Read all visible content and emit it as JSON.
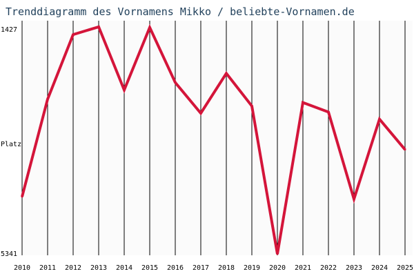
{
  "chart_data": {
    "type": "line",
    "title": "Trenddiagramm des Vornamens Mikko / beliebte-Vornamen.de",
    "xlabel": "",
    "ylabel": "Platz",
    "y_top_label": "1427",
    "y_bottom_label": "5341",
    "ylim": [
      1427,
      5341
    ],
    "y_inverted": true,
    "x": [
      "2010",
      "2011",
      "2012",
      "2013",
      "2014",
      "2015",
      "2016",
      "2017",
      "2018",
      "2019",
      "2020",
      "2021",
      "2022",
      "2023",
      "2024",
      "2025"
    ],
    "series": [
      {
        "name": "",
        "values": [
          4380,
          2745,
          1660,
          1530,
          2590,
          1540,
          2465,
          2980,
          2310,
          2860,
          5341,
          2800,
          2960,
          4420,
          3080,
          3590
        ],
        "color": "#d4153a"
      }
    ],
    "grid": {
      "vertical": true,
      "horizontal": false
    },
    "colors": {
      "background": "#ffffff",
      "plot_background": "#fbfbfb",
      "grid": "#000000",
      "line": "#d4153a",
      "title": "#1f3f5a"
    }
  }
}
